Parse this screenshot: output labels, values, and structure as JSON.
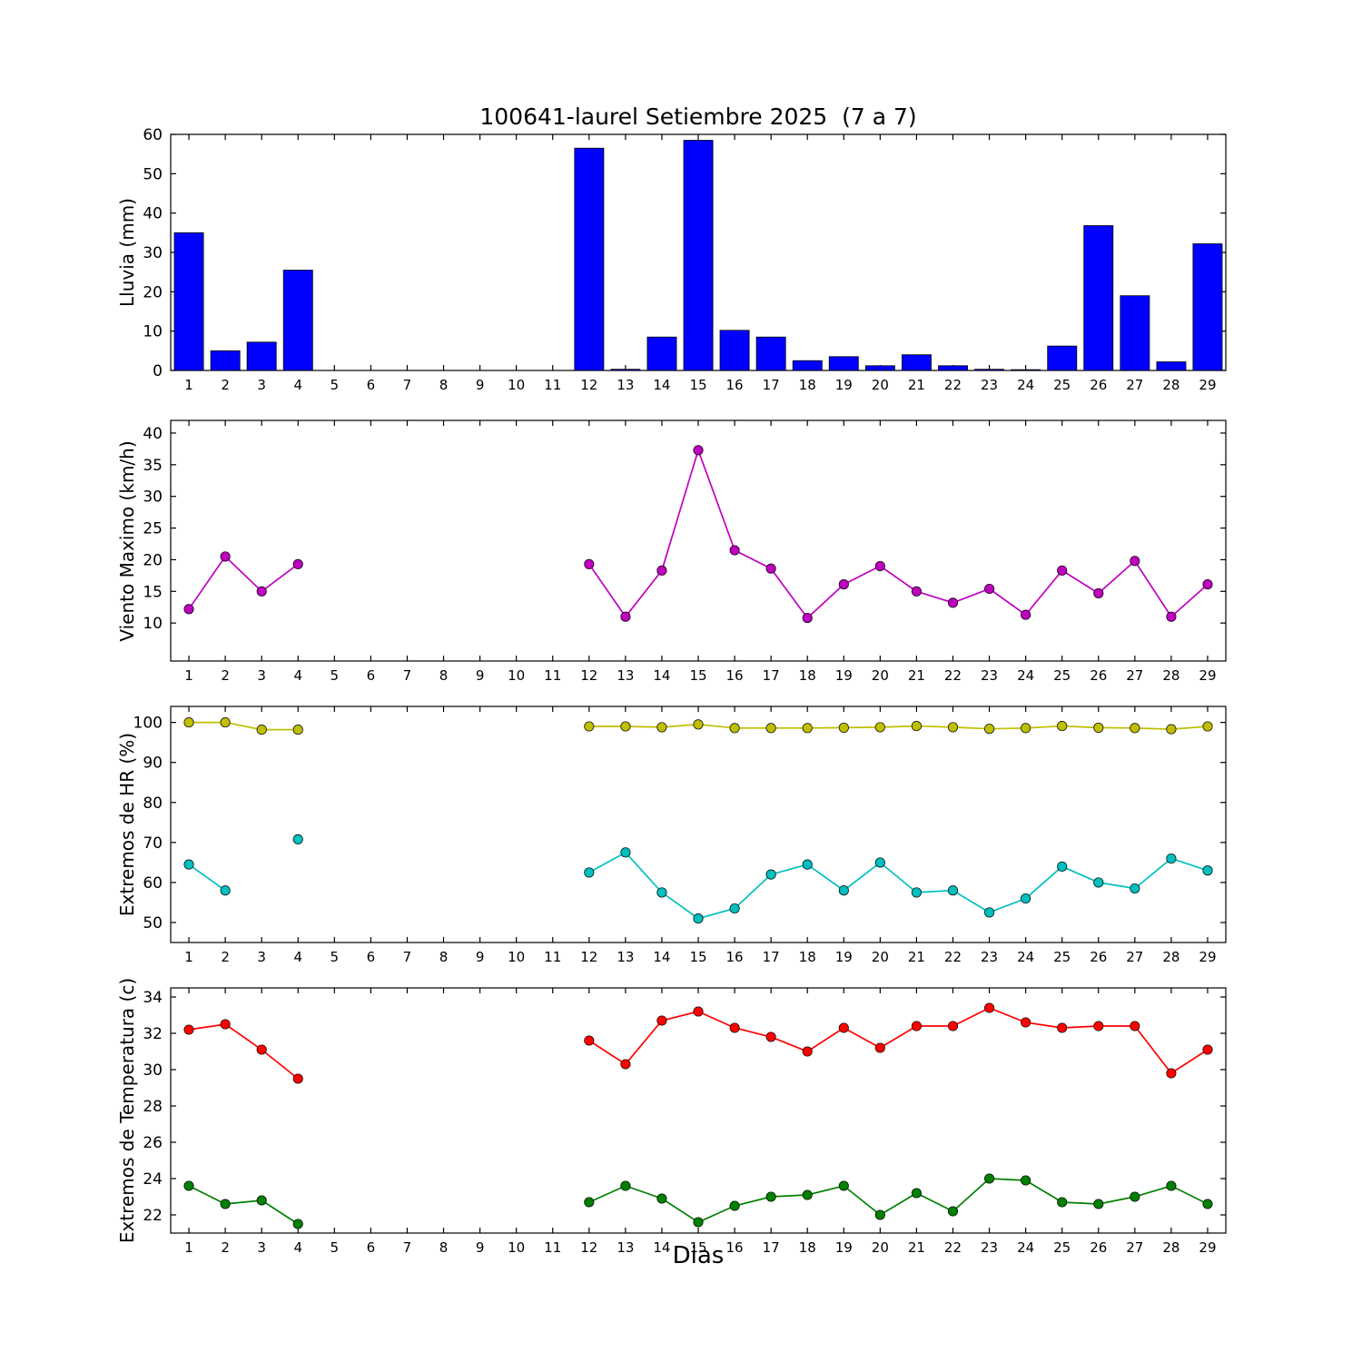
{
  "figure": {
    "title": "100641-laurel Setiembre 2025  (7 a 7)",
    "xlabel": "Dias"
  },
  "chart_data": [
    {
      "name": "lluvia",
      "type": "bar",
      "ylabel": "Lluvia (mm)",
      "color": "#0000ff",
      "x": [
        1,
        2,
        3,
        4,
        5,
        6,
        7,
        8,
        9,
        10,
        11,
        12,
        13,
        14,
        15,
        16,
        17,
        18,
        19,
        20,
        21,
        22,
        23,
        24,
        25,
        26,
        27,
        28,
        29
      ],
      "values": [
        35,
        5,
        7.2,
        25.5,
        0,
        0,
        0,
        0,
        0,
        0,
        0,
        56.5,
        0.3,
        8.5,
        58.5,
        10.2,
        8.5,
        2.5,
        3.5,
        1.2,
        4,
        1.2,
        0.3,
        0.2,
        6.2,
        36.8,
        19,
        2.2,
        32.2
      ],
      "ylim": [
        0,
        60
      ],
      "yticks": [
        0,
        10,
        20,
        30,
        40,
        50,
        60
      ],
      "grid": false,
      "legend": "none"
    },
    {
      "name": "viento",
      "type": "line",
      "ylabel": "Viento Maximo (km/h)",
      "color": "#bf00bf",
      "x": [
        1,
        2,
        3,
        4,
        5,
        6,
        7,
        8,
        9,
        10,
        11,
        12,
        13,
        14,
        15,
        16,
        17,
        18,
        19,
        20,
        21,
        22,
        23,
        24,
        25,
        26,
        27,
        28,
        29
      ],
      "values": [
        12.2,
        20.5,
        15,
        19.3,
        null,
        null,
        null,
        null,
        null,
        null,
        null,
        19.3,
        11,
        18.3,
        37.3,
        21.5,
        18.6,
        10.8,
        16.1,
        19,
        15,
        13.2,
        15.4,
        11.3,
        18.3,
        14.7,
        19.8,
        11,
        16.1
      ],
      "ylim": [
        4,
        42
      ],
      "yticks": [
        10,
        15,
        20,
        25,
        30,
        35,
        40
      ],
      "grid": false,
      "legend": "none"
    },
    {
      "name": "hr",
      "type": "line",
      "ylabel": "Extremos de HR (%)",
      "x": [
        1,
        2,
        3,
        4,
        5,
        6,
        7,
        8,
        9,
        10,
        11,
        12,
        13,
        14,
        15,
        16,
        17,
        18,
        19,
        20,
        21,
        22,
        23,
        24,
        25,
        26,
        27,
        28,
        29
      ],
      "series": [
        {
          "name": "hr-maxima",
          "color": "#bfbf00",
          "values": [
            100,
            100,
            98.2,
            98.2,
            null,
            null,
            null,
            null,
            null,
            null,
            null,
            99,
            99,
            98.8,
            99.5,
            98.6,
            98.6,
            98.6,
            98.7,
            98.8,
            99.1,
            98.8,
            98.4,
            98.6,
            99.1,
            98.7,
            98.6,
            98.3,
            99
          ]
        },
        {
          "name": "hr-minima",
          "color": "#00bfbf",
          "values": [
            64.5,
            58,
            null,
            70.8,
            null,
            null,
            null,
            null,
            null,
            null,
            null,
            62.5,
            67.5,
            57.5,
            51,
            53.5,
            62,
            64.5,
            58,
            65,
            57.5,
            58,
            52.5,
            56,
            64,
            60,
            58.5,
            66,
            63
          ]
        }
      ],
      "ylim": [
        45,
        104
      ],
      "yticks": [
        50,
        60,
        70,
        80,
        90,
        100
      ],
      "grid": false,
      "legend": "none"
    },
    {
      "name": "temperatura",
      "type": "line",
      "ylabel": "Extremos de Temperatura (c)",
      "x": [
        1,
        2,
        3,
        4,
        5,
        6,
        7,
        8,
        9,
        10,
        11,
        12,
        13,
        14,
        15,
        16,
        17,
        18,
        19,
        20,
        21,
        22,
        23,
        24,
        25,
        26,
        27,
        28,
        29
      ],
      "series": [
        {
          "name": "temperatura-maxima",
          "color": "#ff0000",
          "values": [
            32.2,
            32.5,
            31.1,
            29.5,
            null,
            null,
            null,
            null,
            null,
            null,
            null,
            31.6,
            30.3,
            32.7,
            33.2,
            32.3,
            31.8,
            31,
            32.3,
            31.2,
            32.4,
            32.4,
            33.4,
            32.6,
            32.3,
            32.4,
            32.4,
            29.8,
            31.1
          ]
        },
        {
          "name": "temperatura-minima",
          "color": "#008000",
          "values": [
            23.6,
            22.6,
            22.8,
            21.5,
            null,
            null,
            null,
            null,
            null,
            null,
            null,
            22.7,
            23.6,
            22.9,
            21.6,
            22.5,
            23,
            23.1,
            23.6,
            22,
            23.2,
            22.2,
            24,
            23.9,
            22.7,
            22.6,
            23,
            23.6,
            22.6
          ]
        }
      ],
      "ylim": [
        21,
        34.5
      ],
      "yticks": [
        22,
        24,
        26,
        28,
        30,
        32,
        34
      ],
      "grid": false,
      "legend": "none"
    }
  ]
}
